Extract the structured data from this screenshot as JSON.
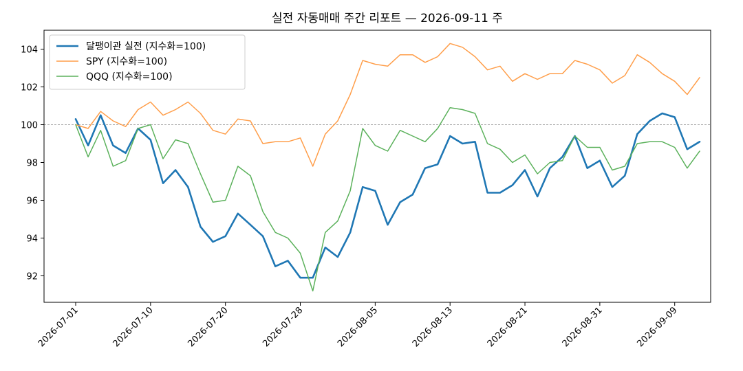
{
  "chart_data": {
    "type": "line",
    "title": "실전 자동매매 주간 리포트 — 2026-09-11 주",
    "xlabel": "",
    "ylabel": "",
    "ylim": [
      90.6,
      105.0
    ],
    "y_ticks": [
      92,
      94,
      96,
      98,
      100,
      102,
      104
    ],
    "x_tick_labels": [
      "2026-07-01",
      "2026-07-10",
      "2026-07-20",
      "2026-07-28",
      "2026-08-05",
      "2026-08-13",
      "2026-08-21",
      "2026-08-31",
      "2026-09-09"
    ],
    "x_tick_indices": [
      0,
      6,
      12,
      18,
      24,
      30,
      36,
      42,
      48
    ],
    "reference_line": 100,
    "legend_position": "top-left",
    "series": [
      {
        "name": "달팽이관 실전 (지수화=100)",
        "color": "#1f77b4",
        "values": [
          100.3,
          98.9,
          100.5,
          98.9,
          98.5,
          99.8,
          99.2,
          96.9,
          97.6,
          96.7,
          94.6,
          93.8,
          94.1,
          95.3,
          94.7,
          94.1,
          92.5,
          92.8,
          91.9,
          91.9,
          93.5,
          93.0,
          94.3,
          96.7,
          96.5,
          94.7,
          95.9,
          96.3,
          97.7,
          97.9,
          99.4,
          99.0,
          99.1,
          96.4,
          96.4,
          96.8,
          97.6,
          96.2,
          97.7,
          98.3,
          99.4,
          97.7,
          98.1,
          96.7,
          97.3,
          99.5,
          100.2,
          100.6,
          100.4,
          98.7,
          99.1
        ]
      },
      {
        "name": "SPY (지수화=100)",
        "color": "#ff9e4a",
        "values": [
          100.0,
          99.8,
          100.7,
          100.2,
          99.9,
          100.8,
          101.2,
          100.5,
          100.8,
          101.2,
          100.6,
          99.7,
          99.5,
          100.3,
          100.2,
          99.0,
          99.1,
          99.1,
          99.3,
          97.8,
          99.5,
          100.2,
          101.6,
          103.4,
          103.2,
          103.1,
          103.7,
          103.7,
          103.3,
          103.6,
          104.3,
          104.1,
          103.6,
          102.9,
          103.1,
          102.3,
          102.7,
          102.4,
          102.7,
          102.7,
          103.4,
          103.2,
          102.9,
          102.2,
          102.6,
          103.7,
          103.3,
          102.7,
          102.3,
          101.6,
          102.5
        ]
      },
      {
        "name": "QQQ (지수화=100)",
        "color": "#5bb15b",
        "values": [
          100.0,
          98.3,
          99.7,
          97.8,
          98.1,
          99.8,
          100.0,
          98.2,
          99.2,
          99.0,
          97.4,
          95.9,
          96.0,
          97.8,
          97.3,
          95.4,
          94.3,
          94.0,
          93.2,
          91.2,
          94.3,
          94.9,
          96.5,
          99.8,
          98.9,
          98.6,
          99.7,
          99.4,
          99.1,
          99.8,
          100.9,
          100.8,
          100.6,
          99.0,
          98.7,
          98.0,
          98.4,
          97.4,
          98.0,
          98.1,
          99.4,
          98.8,
          98.8,
          97.6,
          97.8,
          99.0,
          99.1,
          99.1,
          98.8,
          97.7,
          98.6
        ]
      }
    ]
  }
}
